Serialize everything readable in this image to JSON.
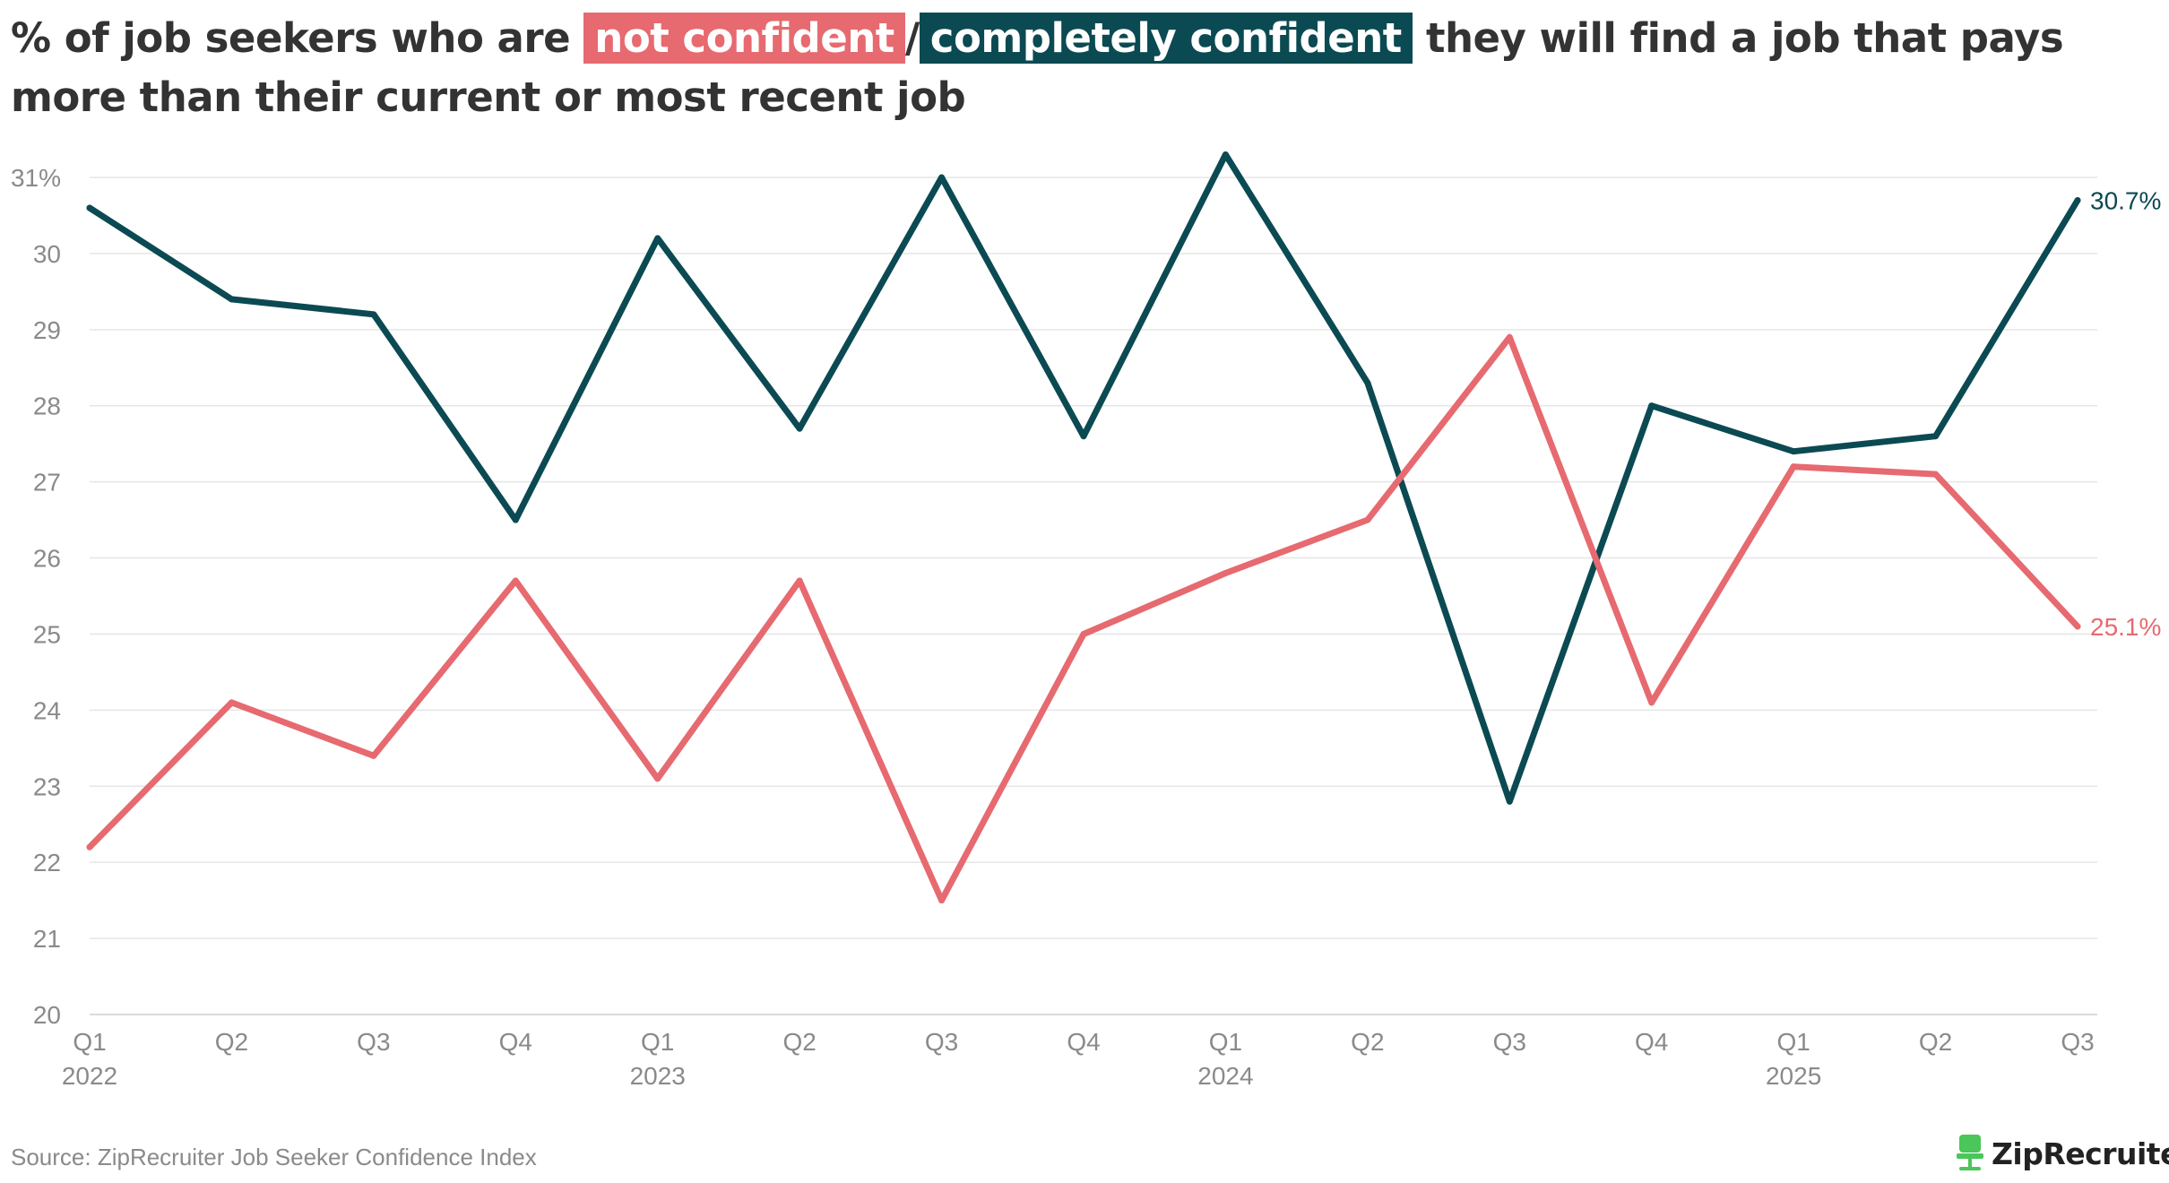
{
  "title": {
    "prefix": "% of job seekers who are ",
    "highlight1": "not confident",
    "separator": "/",
    "highlight2": "completely confident",
    "suffix": " they will find a job that pays more than their current or most recent job"
  },
  "chart_data": {
    "type": "line",
    "categories": [
      "Q1",
      "Q2",
      "Q3",
      "Q4",
      "Q1",
      "Q2",
      "Q3",
      "Q4",
      "Q1",
      "Q2",
      "Q3",
      "Q4",
      "Q1",
      "Q2",
      "Q3"
    ],
    "year_labels": [
      "2022",
      "",
      "",
      "",
      "2023",
      "",
      "",
      "",
      "2024",
      "",
      "",
      "",
      "2025",
      "",
      ""
    ],
    "series": [
      {
        "name": "not confident",
        "color": "#e66a70",
        "values": [
          22.2,
          24.1,
          23.4,
          25.7,
          23.1,
          25.7,
          21.5,
          25.0,
          25.8,
          26.5,
          28.9,
          24.1,
          27.2,
          27.1,
          25.1
        ],
        "end_label": "25.1%"
      },
      {
        "name": "completely confident",
        "color": "#0b4a52",
        "values": [
          30.6,
          29.4,
          29.2,
          26.5,
          30.2,
          27.7,
          31.0,
          27.6,
          31.3,
          28.3,
          22.8,
          28.0,
          27.4,
          27.6,
          30.7
        ],
        "end_label": "30.7%"
      }
    ],
    "y_ticks": [
      "20",
      "21",
      "22",
      "23",
      "24",
      "25",
      "26",
      "27",
      "28",
      "29",
      "30",
      "31%"
    ],
    "ylim": [
      20,
      31
    ],
    "grid": true
  },
  "source": "Source: ZipRecruiter Job Seeker Confidence Index",
  "logo": {
    "text": "ZipRecruiter",
    "registered": "®",
    "icon": "chair-icon",
    "color": "#4ac65a"
  }
}
